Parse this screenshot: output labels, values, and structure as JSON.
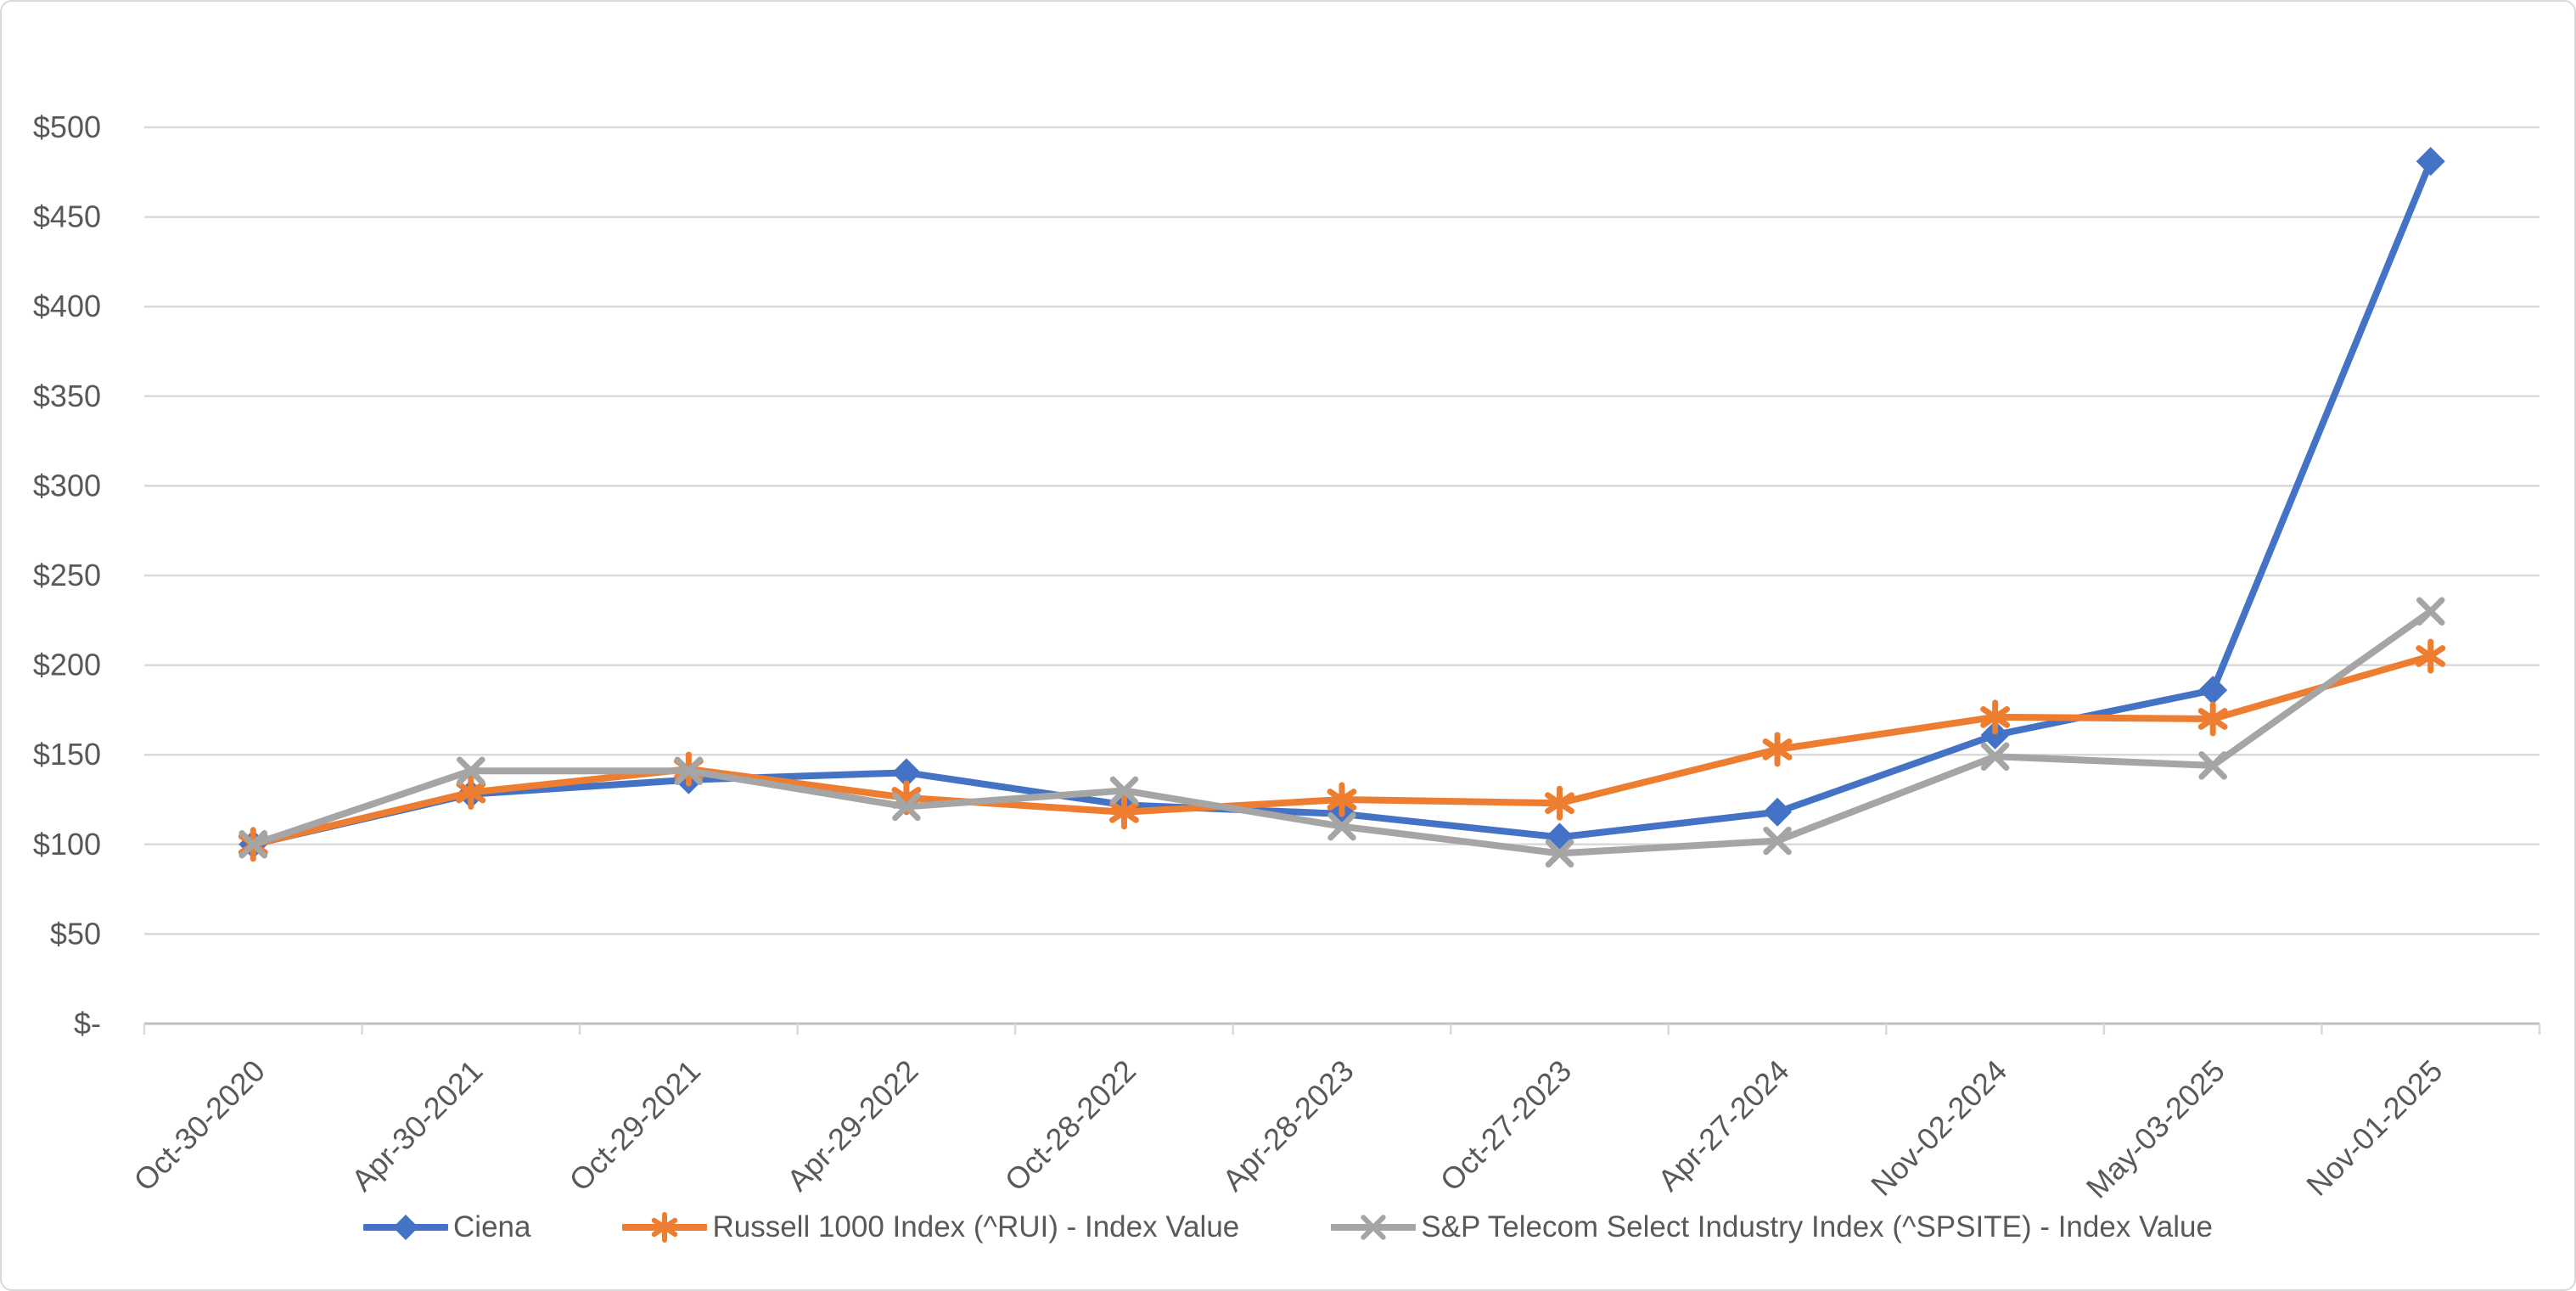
{
  "chart_data": {
    "type": "line",
    "title": "",
    "categories": [
      "Oct-30-2020",
      "Apr-30-2021",
      "Oct-29-2021",
      "Apr-29-2022",
      "Oct-28-2022",
      "Apr-28-2023",
      "Oct-27-2023",
      "Apr-27-2024",
      "Nov-02-2024",
      "May-03-2025",
      "Nov-01-2025"
    ],
    "series": [
      {
        "id": "ciena",
        "name": "Ciena",
        "color": "#4472C4",
        "marker": "diamond",
        "values": [
          100,
          128,
          136,
          140,
          122,
          117,
          104,
          118,
          161,
          186,
          481
        ]
      },
      {
        "id": "russell-1000-index",
        "name": "Russell 1000 Index (^RUI) - Index Value",
        "color": "#ED7D31",
        "marker": "asterisk",
        "values": [
          100,
          129,
          142,
          126,
          118,
          125,
          123,
          153,
          171,
          170,
          205
        ]
      },
      {
        "id": "sp-telecom-index",
        "name": "S&P Telecom Select Industry Index (^SPSITE) - Index Value",
        "color": "#A5A5A5",
        "marker": "x",
        "values": [
          100,
          141,
          141,
          121,
          130,
          110,
          95,
          102,
          149,
          144,
          230
        ]
      }
    ],
    "y_axis": {
      "min": 0,
      "max": 500,
      "step": 50,
      "tick_labels": [
        "$-",
        "$50",
        "$100",
        "$150",
        "$200",
        "$250",
        "$300",
        "$350",
        "$400",
        "$450",
        "$500"
      ]
    },
    "x_axis": {
      "rotation_degrees": -45
    },
    "grid": true,
    "legend_position": "bottom",
    "styles": {
      "gridline_color": "#D9D9D9",
      "axis_line_color": "#BFBFBF",
      "tick_color": "#D9D9D9",
      "label_color": "#595959",
      "background_color": "#FFFFFF",
      "frame_border_color": "#D9D9D9"
    }
  }
}
